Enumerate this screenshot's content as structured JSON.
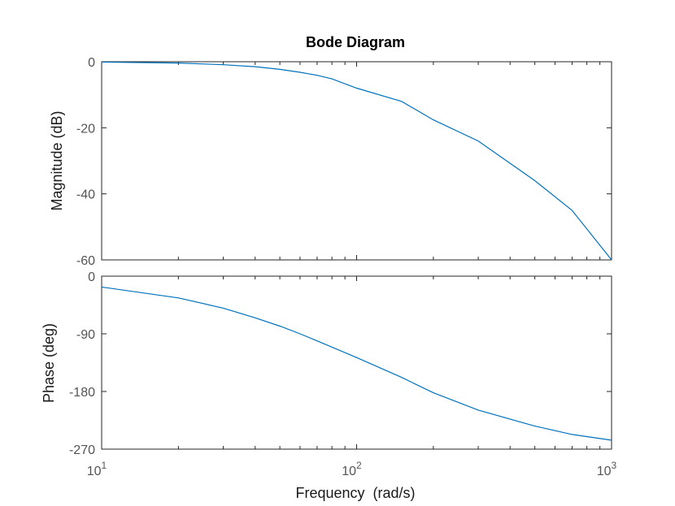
{
  "chart_data": {
    "type": "line",
    "title": "Bode Diagram",
    "xlabel": "Frequency  (rad/s)",
    "x_scale": "log",
    "xlim": [
      10,
      1000
    ],
    "x_ticks": [
      {
        "base": "10",
        "exp": "1"
      },
      {
        "base": "10",
        "exp": "2"
      },
      {
        "base": "10",
        "exp": "3"
      }
    ],
    "grid": false,
    "line_color": "#0072BD",
    "panels": [
      {
        "name": "magnitude",
        "ylabel": "Magnitude (dB)",
        "ylim": [
          -60,
          0
        ],
        "yticks": [
          0,
          -20,
          -40,
          -60
        ],
        "x": [
          10,
          20,
          30,
          40,
          50,
          60,
          70,
          80,
          100,
          150,
          200,
          300,
          500,
          700,
          1000
        ],
        "y": [
          -0.1,
          -0.4,
          -0.9,
          -1.5,
          -2.3,
          -3.2,
          -4.1,
          -5.2,
          -8.0,
          -12.0,
          -17.6,
          -24.0,
          -36.0,
          -45.0,
          -60.0
        ]
      },
      {
        "name": "phase",
        "ylabel": "Phase (deg)",
        "ylim": [
          -270,
          0
        ],
        "yticks": [
          0,
          -90,
          -180,
          -270
        ],
        "x": [
          10,
          20,
          30,
          40,
          50,
          60,
          70,
          100,
          150,
          200,
          300,
          500,
          700,
          1000
        ],
        "y": [
          -17,
          -34,
          -50,
          -65,
          -78,
          -90,
          -101,
          -127,
          -158,
          -182,
          -209,
          -234,
          -247,
          -256
        ]
      }
    ]
  }
}
